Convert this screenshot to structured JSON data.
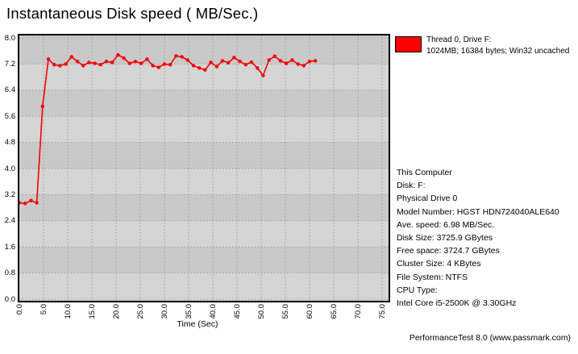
{
  "title": "Instantaneous Disk speed ( MB/Sec.)",
  "legend": {
    "swatch_color": "#ff0000",
    "line1": "Thread 0, Drive F:",
    "line2": "1024MB; 16384 bytes; Win32 uncached"
  },
  "info_panel": {
    "lines": [
      "This Computer",
      "Disk: F:",
      "Physical Drive 0",
      "Model Number: HGST HDN724040ALE640",
      "Ave. speed: 6.98 MB/Sec.",
      "Disk Size: 3725.9 GBytes",
      "Free space: 3724.7 GBytes",
      "Cluster Size: 4 KBytes",
      "File System: NTFS",
      "CPU Type:",
      "Intel Core i5-2500K @ 3.30GHz"
    ]
  },
  "footer": "PerformanceTest 8.0 (www.passmark.com)",
  "chart_data": {
    "type": "line",
    "title": "Instantaneous Disk speed ( MB/Sec.)",
    "xlabel": "Time (Sec)",
    "ylabel": "",
    "xlim": [
      0,
      76.3
    ],
    "ylim": [
      0,
      8.0
    ],
    "x_ticks": [
      "0.0",
      "5.0",
      "10.0",
      "15.0",
      "20.0",
      "25.0",
      "30.0",
      "35.0",
      "40.0",
      "45.0",
      "50.0",
      "55.0",
      "60.0",
      "65.0",
      "70.0",
      "75.0"
    ],
    "y_ticks": [
      "8.0",
      "7.2",
      "6.4",
      "5.6",
      "4.8",
      "4.0",
      "3.2",
      "2.4",
      "1.6",
      "0.8",
      "0.0"
    ],
    "grid": "dotted",
    "gridline_color": "#a0a0a0",
    "plot_band_colors": [
      "#c9c9c9",
      "#d5d5d5"
    ],
    "line_color": "#f40000",
    "marker": "dot",
    "legend_position": "outside-top-right",
    "series": [
      {
        "name": "Thread 0, Drive F: 1024MB; 16384 bytes; Win32 uncached",
        "x": [
          0,
          1.2,
          2.4,
          3.6,
          4.8,
          6,
          7.2,
          8.4,
          9.6,
          10.8,
          12,
          13.2,
          14.4,
          15.6,
          16.8,
          18,
          19.2,
          20.4,
          21.6,
          22.8,
          24,
          25.2,
          26.4,
          27.6,
          28.8,
          30,
          31.2,
          32.4,
          33.6,
          34.8,
          36,
          37.2,
          38.4,
          39.6,
          40.8,
          42,
          43.2,
          44.4,
          45.6,
          46.8,
          48,
          49.2,
          50.4,
          51.6,
          52.8,
          54,
          55.2,
          56.4,
          57.6,
          58.8,
          60,
          61.2
        ],
        "y": [
          2.95,
          2.93,
          3.02,
          2.95,
          5.9,
          7.35,
          7.18,
          7.15,
          7.2,
          7.42,
          7.28,
          7.15,
          7.25,
          7.22,
          7.18,
          7.28,
          7.25,
          7.48,
          7.38,
          7.22,
          7.28,
          7.22,
          7.35,
          7.15,
          7.1,
          7.2,
          7.18,
          7.45,
          7.42,
          7.32,
          7.15,
          7.08,
          7.02,
          7.25,
          7.12,
          7.3,
          7.24,
          7.4,
          7.28,
          7.18,
          7.26,
          7.08,
          6.85,
          7.32,
          7.44,
          7.3,
          7.22,
          7.32,
          7.2,
          7.15,
          7.28,
          7.3
        ]
      }
    ]
  }
}
